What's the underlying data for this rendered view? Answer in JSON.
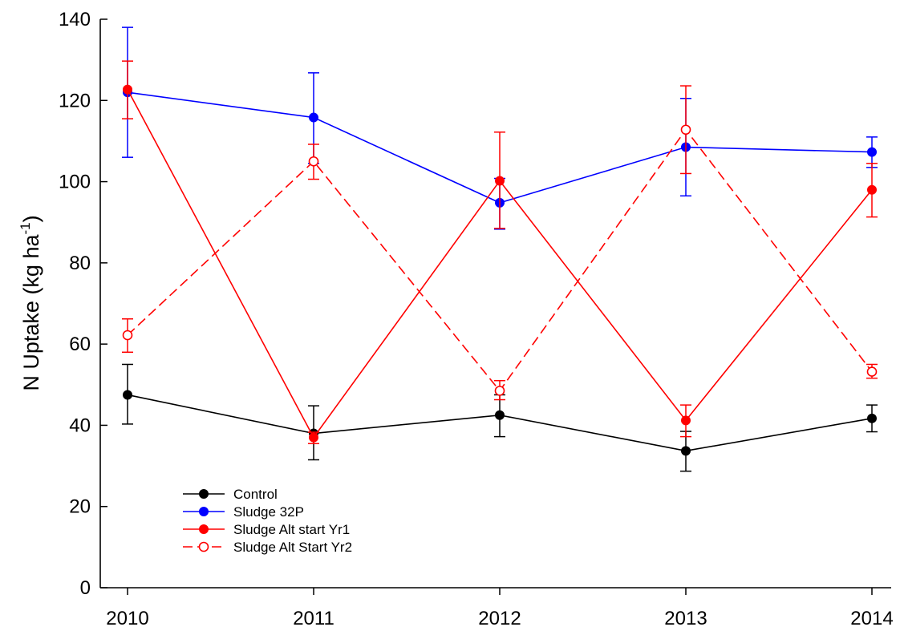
{
  "chart_data": {
    "type": "line",
    "title": "",
    "xlabel": "",
    "ylabel": {
      "main": "N Uptake (kg ha",
      "sup": "-1",
      "close": ")"
    },
    "x": [
      2010,
      2011,
      2012,
      2013,
      2014
    ],
    "x_tick_labels": [
      "2010",
      "2011",
      "2012",
      "2013",
      "2014"
    ],
    "xlim": [
      2010,
      2014
    ],
    "ylim": [
      0,
      140
    ],
    "y_ticks": [
      0,
      20,
      40,
      60,
      80,
      100,
      120,
      140
    ],
    "y_tick_labels": [
      "0",
      "20",
      "40",
      "60",
      "80",
      "100",
      "120",
      "140"
    ],
    "grid": false,
    "legend_position": "bottom-left",
    "series": [
      {
        "name": "Control",
        "color": "#000000",
        "dashed": false,
        "marker": "filled-circle",
        "values": [
          47.5,
          38,
          42.5,
          33.7,
          41.7
        ],
        "err_low": [
          40.3,
          31.5,
          37.2,
          28.7,
          38.4
        ],
        "err_high": [
          55.0,
          44.8,
          47.5,
          38.5,
          45.0
        ]
      },
      {
        "name": "Sludge 32P",
        "color": "#0000ff",
        "dashed": false,
        "marker": "filled-circle",
        "values": [
          122,
          115.8,
          94.8,
          108.5,
          107.3
        ],
        "err_low": [
          106.0,
          104.5,
          88.3,
          96.5,
          103.5
        ],
        "err_high": [
          138.0,
          126.8,
          100.8,
          120.5,
          111.0
        ]
      },
      {
        "name": "Sludge Alt start Yr1",
        "color": "#ff0000",
        "dashed": false,
        "marker": "filled-circle",
        "values": [
          122.7,
          37,
          100.2,
          41.2,
          98
        ],
        "err_low": [
          115.5,
          35.5,
          88.5,
          37.2,
          91.3
        ],
        "err_high": [
          129.7,
          38.3,
          112.2,
          45.0,
          104.5
        ]
      },
      {
        "name": "Sludge Alt Start Yr2",
        "color": "#ff0000",
        "dashed": true,
        "marker": "open-circle",
        "values": [
          62.2,
          105,
          48.5,
          112.8,
          53.2
        ],
        "err_low": [
          58.0,
          100.6,
          46.3,
          102.0,
          51.6
        ],
        "err_high": [
          66.2,
          109.2,
          51.0,
          123.6,
          55.0
        ]
      }
    ]
  }
}
